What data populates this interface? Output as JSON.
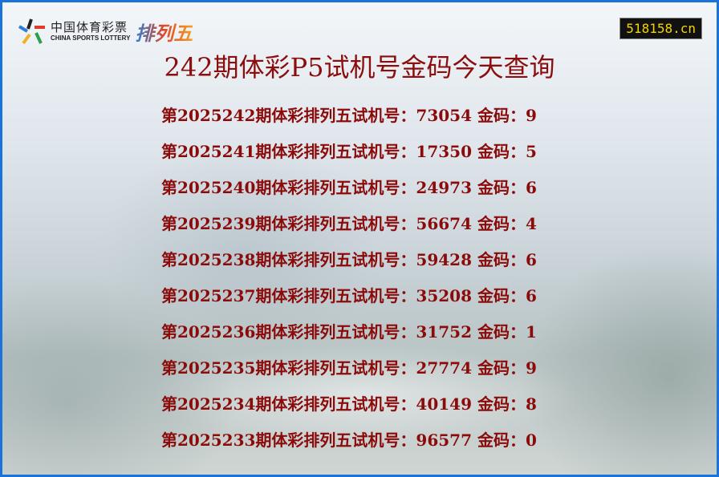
{
  "logo": {
    "cn": "中国体育彩票",
    "en": "CHINA SPORTS LOTTERY",
    "product": "排列五"
  },
  "site": "518158.cn",
  "title": "242期体彩P5试机号金码今天查询",
  "rows": [
    {
      "text": "第2025242期体彩排列五试机号：73054 金码：9"
    },
    {
      "text": "第2025241期体彩排列五试机号：17350 金码：5"
    },
    {
      "text": "第2025240期体彩排列五试机号：24973 金码：6"
    },
    {
      "text": "第2025239期体彩排列五试机号：56674 金码：4"
    },
    {
      "text": "第2025238期体彩排列五试机号：59428 金码：6"
    },
    {
      "text": "第2025237期体彩排列五试机号：35208 金码：6"
    },
    {
      "text": "第2025236期体彩排列五试机号：31752 金码：1"
    },
    {
      "text": "第2025235期体彩排列五试机号：27774 金码：9"
    },
    {
      "text": "第2025234期体彩排列五试机号：40149 金码：8"
    },
    {
      "text": "第2025233期体彩排列五试机号：96577 金码：0"
    }
  ]
}
